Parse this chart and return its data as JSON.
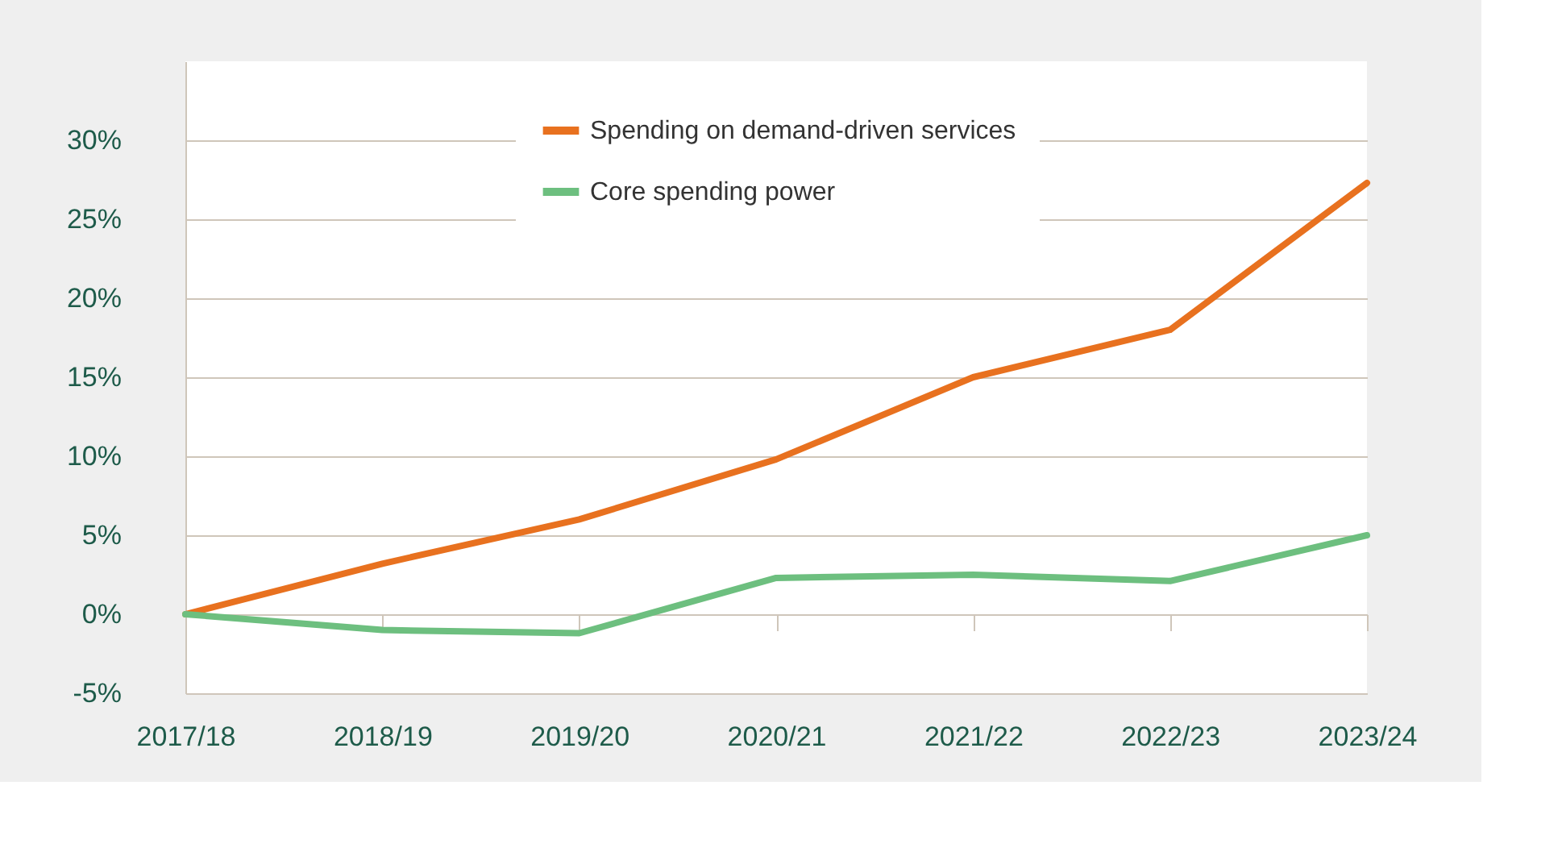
{
  "chart_data": {
    "type": "line",
    "categories": [
      "2017/18",
      "2018/19",
      "2019/20",
      "2020/21",
      "2021/22",
      "2022/23",
      "2023/24"
    ],
    "series": [
      {
        "name": "Spending on demand-driven services",
        "color": "#e8711f",
        "values": [
          0,
          3.2,
          6,
          9.8,
          15,
          18,
          27.3
        ]
      },
      {
        "name": "Core spending power",
        "color": "#6dbf7f",
        "values": [
          0,
          -1,
          -1.2,
          2.3,
          2.5,
          2.1,
          5
        ]
      }
    ],
    "ylim": [
      -5,
      35
    ],
    "yticks": [
      {
        "value": -5,
        "label": "-5%"
      },
      {
        "value": 0,
        "label": "0%"
      },
      {
        "value": 5,
        "label": "5%"
      },
      {
        "value": 10,
        "label": "10%"
      },
      {
        "value": 15,
        "label": "15%"
      },
      {
        "value": 20,
        "label": "20%"
      },
      {
        "value": 25,
        "label": "25%"
      },
      {
        "value": 30,
        "label": "30%"
      }
    ],
    "grid": "y",
    "legend": "top left",
    "marker": "none",
    "line_style": "solid"
  }
}
